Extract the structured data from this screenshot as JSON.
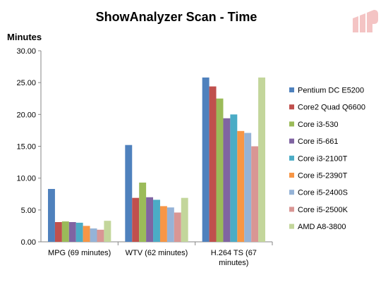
{
  "chart_data": {
    "type": "bar",
    "title": "ShowAnalyzer Scan - Time",
    "ylabel": "Minutes",
    "xlabel": "",
    "ylim": [
      0,
      30
    ],
    "yticks": [
      "0.00",
      "5.00",
      "10.00",
      "15.00",
      "20.00",
      "25.00",
      "30.00"
    ],
    "grid": false,
    "legend_position": "right",
    "categories": [
      [
        "MPG (69 minutes)"
      ],
      [
        "WTV (62 minutes)"
      ],
      [
        "H.264 TS (67",
        "minutes)"
      ]
    ],
    "series": [
      {
        "name": "Pentium DC E5200",
        "color": "#4f81bd",
        "values": [
          8.3,
          15.2,
          25.8
        ]
      },
      {
        "name": "Core2 Quad Q6600",
        "color": "#c0504d",
        "values": [
          3.1,
          6.9,
          24.4
        ]
      },
      {
        "name": "Core i3-530",
        "color": "#9bbb59",
        "values": [
          3.2,
          9.3,
          22.5
        ]
      },
      {
        "name": "Core i5-661",
        "color": "#8064a2",
        "values": [
          3.1,
          7.0,
          19.4
        ]
      },
      {
        "name": "Core i3-2100T",
        "color": "#4bacc6",
        "values": [
          3.0,
          6.6,
          20.0
        ]
      },
      {
        "name": "Core i5-2390T",
        "color": "#f79646",
        "values": [
          2.5,
          5.6,
          17.4
        ]
      },
      {
        "name": "Core i5-2400S",
        "color": "#95b3d7",
        "values": [
          2.1,
          5.4,
          17.1
        ]
      },
      {
        "name": "Core i5-2500K",
        "color": "#d99694",
        "values": [
          1.9,
          4.6,
          15.0
        ]
      },
      {
        "name": "AMD A8-3800",
        "color": "#c3d69b",
        "values": [
          3.3,
          6.9,
          25.8
        ]
      }
    ]
  },
  "brand": {
    "logo_icon": "brand-logo-icon",
    "logo_color": "#f4c4c4"
  }
}
